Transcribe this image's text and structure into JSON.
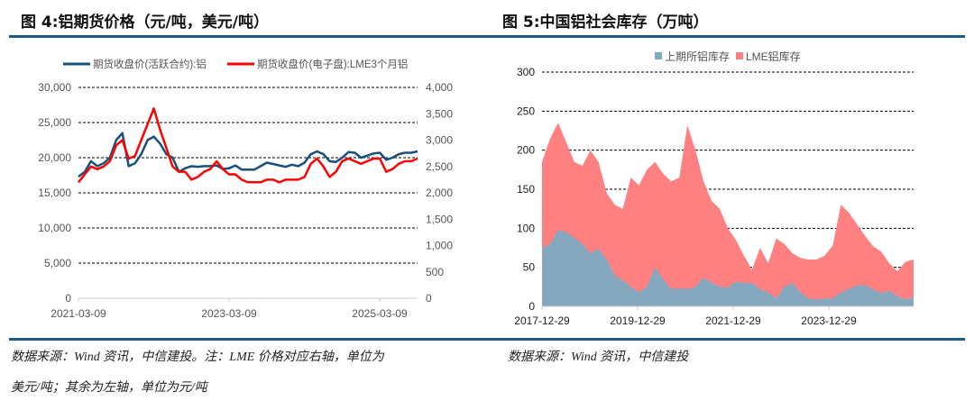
{
  "figure4": {
    "title": "图 4:铝期货价格（元/吨，美元/吨）",
    "source_line1": "数据来源：Wind 资讯，中信建投。注：LME 价格对应右轴，单位为",
    "source_line2": "美元/吨；其余为左轴，单位为元/吨"
  },
  "figure5": {
    "title": "图 5:中国铝社会库存（万吨）",
    "source_line1": "数据来源：Wind 资讯，中信建投"
  },
  "colors": {
    "rule": "#1b5a86",
    "shfe_line": "#17507f",
    "lme_line": "#ff0000",
    "shfe_area": "#85a8bf",
    "lme_area": "#ff8080"
  },
  "chart_data": [
    {
      "type": "line",
      "title": "图 4:铝期货价格（元/吨，美元/吨）",
      "x_start": "2021-03",
      "x_step": "1 month",
      "x_ticks": [
        "2021-03-09",
        "2023-03-09",
        "2025-03-09"
      ],
      "y_left": {
        "lim": [
          0,
          30000
        ],
        "ticks": [
          "0",
          "5,000",
          "10,000",
          "15,000",
          "20,000",
          "25,000",
          "30,000"
        ]
      },
      "y_right": {
        "lim": [
          0,
          4000
        ],
        "ticks": [
          "0",
          "500",
          "1,000",
          "1,500",
          "2,000",
          "2,500",
          "3,000",
          "3,500",
          "4,000"
        ]
      },
      "grid": true,
      "legend_position": "top",
      "series": [
        {
          "name": "期货收盘价(活跃合约):铝",
          "axis": "left",
          "values": [
            17300,
            18000,
            19500,
            18800,
            19200,
            20000,
            22500,
            23500,
            18800,
            19200,
            20500,
            22500,
            23000,
            22000,
            20500,
            20000,
            18000,
            18500,
            18800,
            18700,
            18800,
            18800,
            18900,
            18400,
            18500,
            18900,
            18300,
            18300,
            18300,
            18800,
            19300,
            19100,
            18900,
            18700,
            19000,
            18800,
            19300,
            20500,
            20900,
            20500,
            19500,
            19400,
            20000,
            20800,
            20700,
            20000,
            20300,
            20600,
            20700,
            19700,
            20000,
            20500,
            20700,
            20700,
            20900
          ]
        },
        {
          "name": "期货收盘价(电子盘):LME3个月铝",
          "axis": "right",
          "values": [
            2200,
            2350,
            2500,
            2450,
            2500,
            2600,
            2900,
            3000,
            2650,
            2700,
            3000,
            3300,
            3600,
            3200,
            2850,
            2500,
            2400,
            2400,
            2250,
            2300,
            2400,
            2450,
            2600,
            2450,
            2350,
            2350,
            2250,
            2200,
            2200,
            2200,
            2250,
            2250,
            2200,
            2250,
            2250,
            2250,
            2300,
            2550,
            2650,
            2500,
            2300,
            2400,
            2600,
            2650,
            2600,
            2550,
            2600,
            2650,
            2650,
            2400,
            2450,
            2550,
            2600,
            2600,
            2650
          ]
        }
      ]
    },
    {
      "type": "area",
      "stacked": true,
      "title": "图 5:中国铝社会库存（万吨）",
      "x_start": "2017-12",
      "x_step": "2 months",
      "x_ticks": [
        "2017-12-29",
        "2019-12-29",
        "2021-12-29",
        "2023-12-29"
      ],
      "y": {
        "lim": [
          0,
          300
        ],
        "ticks": [
          "0",
          "50",
          "100",
          "150",
          "200",
          "250",
          "300"
        ]
      },
      "grid": true,
      "legend_position": "top",
      "series": [
        {
          "name": "上期所铝库存",
          "values": [
            75,
            80,
            98,
            95,
            88,
            80,
            68,
            74,
            60,
            40,
            33,
            25,
            18,
            25,
            50,
            35,
            22,
            23,
            22,
            25,
            37,
            30,
            25,
            24,
            32,
            30,
            30,
            22,
            18,
            10,
            25,
            30,
            18,
            10,
            9,
            10,
            10,
            18,
            22,
            27,
            27,
            22,
            17,
            20,
            13,
            9,
            12
          ]
        },
        {
          "name": "LME铝库存",
          "values": [
            110,
            135,
            137,
            115,
            97,
            100,
            132,
            111,
            85,
            90,
            92,
            140,
            137,
            150,
            135,
            135,
            138,
            142,
            210,
            175,
            123,
            105,
            100,
            76,
            53,
            35,
            17,
            53,
            37,
            77,
            55,
            38,
            44,
            50,
            51,
            55,
            68,
            112,
            98,
            78,
            63,
            55,
            53,
            35,
            32,
            48,
            48
          ]
        }
      ]
    }
  ]
}
